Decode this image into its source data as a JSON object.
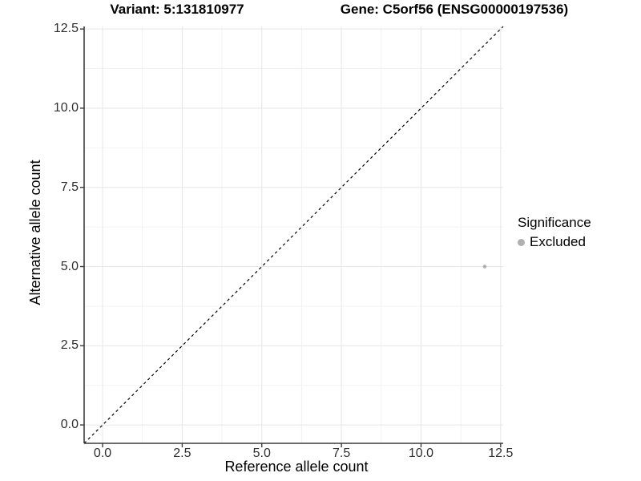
{
  "header": {
    "variant_title": "Variant: 5:131810977",
    "gene_title": "Gene: C5orf56 (ENSG00000197536)"
  },
  "legend": {
    "title": "Significance",
    "items": [
      {
        "label": "Excluded",
        "marker": "circle-icon",
        "color": "#afafaf"
      }
    ]
  },
  "chart_data": {
    "type": "scatter",
    "title": "Variant: 5:131810977 — Gene: C5orf56 (ENSG00000197536)",
    "xlabel": "Reference allele count",
    "ylabel": "Alternative allele count",
    "xlim": [
      -0.58,
      12.58
    ],
    "ylim": [
      -0.58,
      12.58
    ],
    "x_ticks": [
      0,
      2.5,
      5,
      7.5,
      10,
      12.5
    ],
    "y_ticks": [
      0,
      2.5,
      5,
      7.5,
      10,
      12.5
    ],
    "x_tick_labels": [
      "0.0",
      "2.5",
      "5.0",
      "7.5",
      "10.0",
      "12.5"
    ],
    "y_tick_labels": [
      "0.0",
      "2.5",
      "5.0",
      "7.5",
      "10.0",
      "12.5"
    ],
    "x_minor_ticks": [
      1.25,
      3.75,
      6.25,
      8.75,
      11.25
    ],
    "y_minor_ticks": [
      1.25,
      3.75,
      6.25,
      8.75,
      11.25
    ],
    "grid": true,
    "legend_position": "right",
    "series": [
      {
        "name": "Excluded",
        "color": "#afafaf",
        "point_radius": 2.3,
        "points": [
          {
            "x": 12,
            "y": 5
          }
        ]
      }
    ],
    "reference_line": {
      "kind": "identity",
      "slope": 1,
      "intercept": 0,
      "style": "dashed",
      "color": "#000000"
    }
  },
  "style": {
    "background": "#ffffff",
    "grid_major_color": "#e6e6e6",
    "grid_minor_color": "#f2f2f2",
    "axis_line_color": "#3c3c3c",
    "tick_mark_color": "#3c3c3c",
    "tick_label_color": "#2e2e2e",
    "title_color": "#000000"
  }
}
